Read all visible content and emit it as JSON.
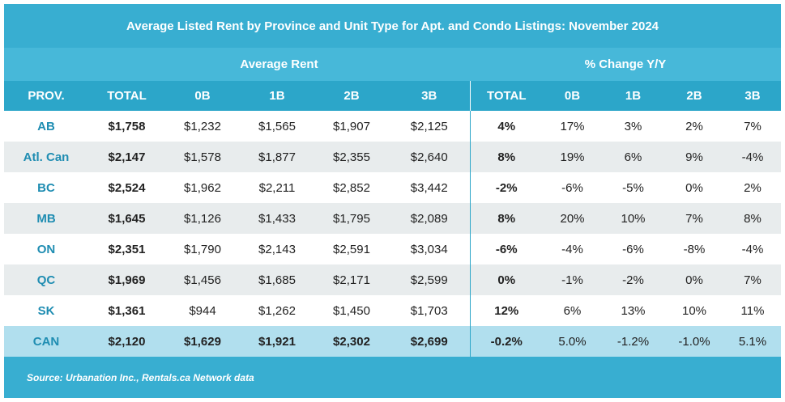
{
  "chart_data": {
    "type": "table",
    "title": "Average Listed Rent by Province and Unit Type for Apt. and Condo Listings: November 2024",
    "column_groups": [
      "Average Rent",
      "% Change Y/Y"
    ],
    "columns": [
      "PROV.",
      "TOTAL",
      "0B",
      "1B",
      "2B",
      "3B",
      "TOTAL",
      "0B",
      "1B",
      "2B",
      "3B"
    ],
    "rows": [
      [
        "AB",
        "$1,758",
        "$1,232",
        "$1,565",
        "$1,907",
        "$2,125",
        "4%",
        "17%",
        "3%",
        "2%",
        "7%"
      ],
      [
        "Atl. Can",
        "$2,147",
        "$1,578",
        "$1,877",
        "$2,355",
        "$2,640",
        "8%",
        "19%",
        "6%",
        "9%",
        "-4%"
      ],
      [
        "BC",
        "$2,524",
        "$1,962",
        "$2,211",
        "$2,852",
        "$3,442",
        "-2%",
        "-6%",
        "-5%",
        "0%",
        "2%"
      ],
      [
        "MB",
        "$1,645",
        "$1,126",
        "$1,433",
        "$1,795",
        "$2,089",
        "8%",
        "20%",
        "10%",
        "7%",
        "8%"
      ],
      [
        "ON",
        "$2,351",
        "$1,790",
        "$2,143",
        "$2,591",
        "$3,034",
        "-6%",
        "-4%",
        "-6%",
        "-8%",
        "-4%"
      ],
      [
        "QC",
        "$1,969",
        "$1,456",
        "$1,685",
        "$2,171",
        "$2,599",
        "0%",
        "-1%",
        "-2%",
        "0%",
        "7%"
      ],
      [
        "SK",
        "$1,361",
        "$944",
        "$1,262",
        "$1,450",
        "$1,703",
        "12%",
        "6%",
        "13%",
        "10%",
        "11%"
      ],
      [
        "CAN",
        "$2,120",
        "$1,629",
        "$1,921",
        "$2,302",
        "$2,699",
        "-0.2%",
        "5.0%",
        "-1.2%",
        "-1.0%",
        "5.1%"
      ]
    ],
    "source": "Source: Urbanation Inc., Rentals.ca Network data"
  },
  "colors": {
    "header_blue": "#38aed1",
    "column_header_blue": "#2ca6c9",
    "province_text": "#1f8db2",
    "stripe_gray": "#e8eced",
    "total_row_blue": "#b1dfee"
  }
}
